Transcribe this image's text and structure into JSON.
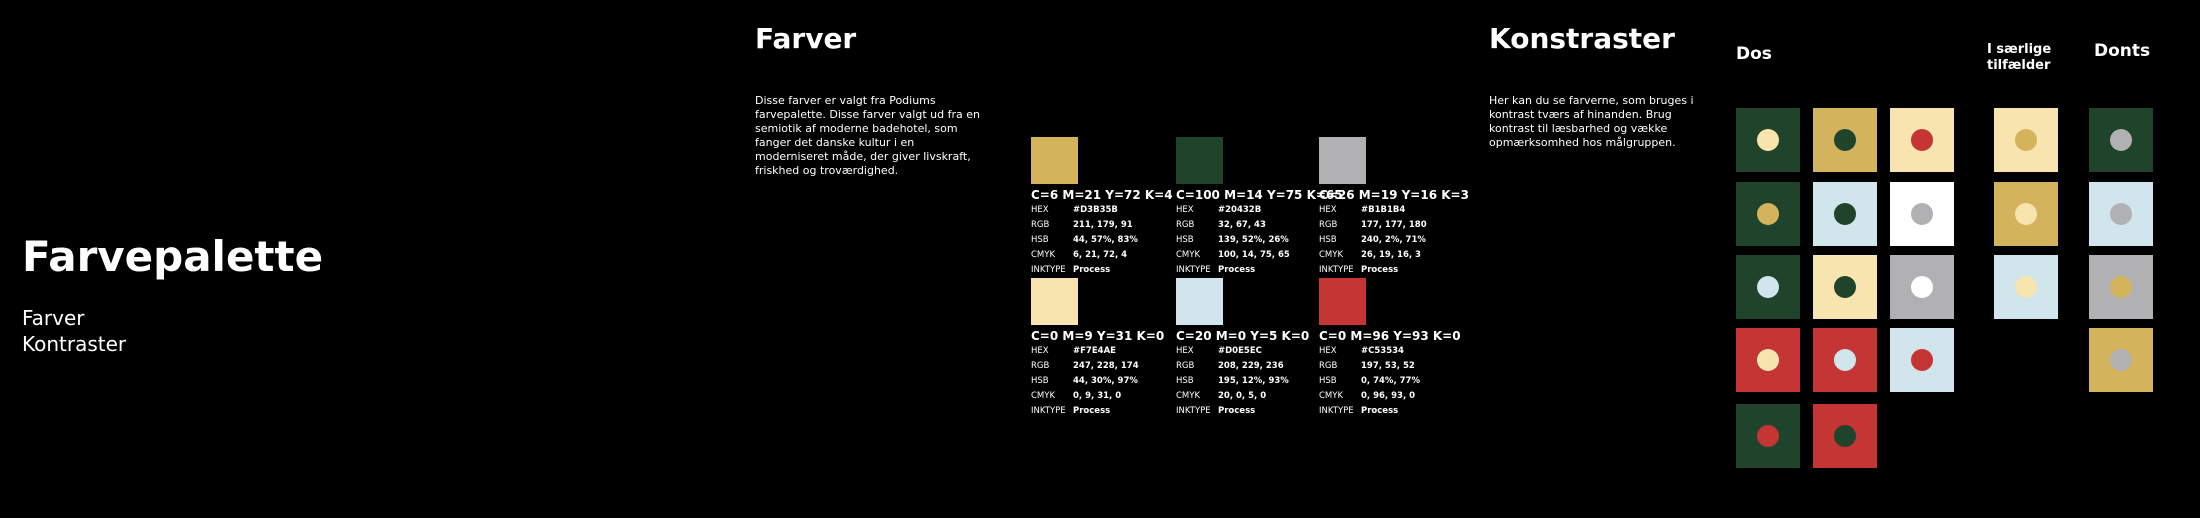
{
  "cover": {
    "title": "Farvepalette",
    "links": [
      "Farver",
      "Kontraster"
    ]
  },
  "colors": {
    "heading": "Farver",
    "intro": "Disse farver er valgt fra Podiums farvepalette. Disse farver valgt ud fra en semiotik af moderne badehotel, som fanger det danske kultur i en moderniseret måde, der giver livskraft, friskhed og troværdighed.",
    "field_labels": [
      "HEX",
      "RGB",
      "HSB",
      "CMYK",
      "INKTYPE"
    ],
    "swatches": [
      {
        "cmyk_label": "C=6 M=21 Y=72 K=4",
        "hex": "#D3B35B",
        "rgb": "211, 179, 91",
        "hsb": "44, 57%, 83%",
        "cmyk": "6, 21, 72, 4",
        "inktype": "Process"
      },
      {
        "cmyk_label": "C=100 M=14 Y=75 K=65",
        "hex": "#20432B",
        "rgb": "32, 67, 43",
        "hsb": "139, 52%, 26%",
        "cmyk": "100, 14, 75, 65",
        "inktype": "Process"
      },
      {
        "cmyk_label": "C=26 M=19 Y=16 K=3",
        "hex": "#B1B1B4",
        "rgb": "177, 177, 180",
        "hsb": "240, 2%, 71%",
        "cmyk": "26, 19, 16, 3",
        "inktype": "Process"
      },
      {
        "cmyk_label": "C=0 M=9 Y=31 K=0",
        "hex": "#F7E4AE",
        "rgb": "247, 228, 174",
        "hsb": "44, 30%, 97%",
        "cmyk": "0, 9, 31, 0",
        "inktype": "Process"
      },
      {
        "cmyk_label": "C=20 M=0 Y=5 K=0",
        "hex": "#D0E5EC",
        "rgb": "208, 229, 236",
        "hsb": "195, 12%, 93%",
        "cmyk": "20, 0, 5, 0",
        "inktype": "Process"
      },
      {
        "cmyk_label": "C=0 M=96 Y=93 K=0",
        "hex": "#C53534",
        "rgb": "197, 53, 52",
        "hsb": "0, 74%, 77%",
        "cmyk": "0, 96, 93, 0",
        "inktype": "Process"
      }
    ]
  },
  "contrasts": {
    "heading": "Konstraster",
    "intro": "Her kan du se farverne, som bruges i kontrast tværs af hinanden. Brug kontrast til læsbarhed og vække opmærksomhed hos målgruppen.",
    "dos": "Dos",
    "special": "I særlige tilfælder",
    "donts": "Donts"
  }
}
